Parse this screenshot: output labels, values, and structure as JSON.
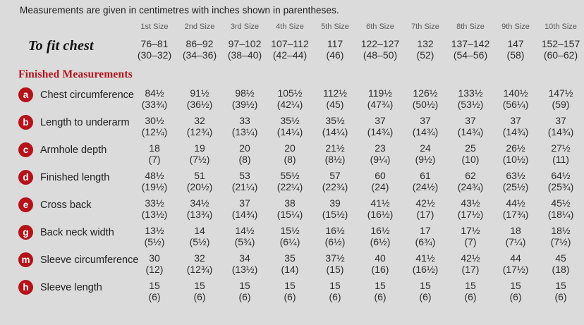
{
  "note": "Measurements are given in centimetres with inches shown in parentheses.",
  "colors": {
    "accent_red": "#b5121a",
    "background": "#dbdbdb"
  },
  "sizes": [
    "1st Size",
    "2nd Size",
    "3rd Size",
    "4th Size",
    "5th Size",
    "6th Size",
    "7th Size",
    "8th Size",
    "9th Size",
    "10th Size"
  ],
  "to_fit_chest": {
    "label": "To fit chest",
    "cm": [
      "76–81",
      "86–92",
      "97–102",
      "107–112",
      "117",
      "122–127",
      "132",
      "137–142",
      "147",
      "152–157"
    ],
    "in": [
      "(30–32)",
      "(34–36)",
      "(38–40)",
      "(42–44)",
      "(46)",
      "(48–50)",
      "(52)",
      "(54–56)",
      "(58)",
      "(60–62)"
    ]
  },
  "finished_heading": "Finished Measurements",
  "rows": [
    {
      "key": "a",
      "label": "Chest circumference",
      "cm": [
        "84½",
        "91½",
        "98½",
        "105½",
        "112½",
        "119½",
        "126½",
        "133½",
        "140½",
        "147½"
      ],
      "in": [
        "(33¾)",
        "(36½)",
        "(39½)",
        "(42¼)",
        "(45)",
        "(47¾)",
        "(50½)",
        "(53½)",
        "(56¼)",
        "(59)"
      ]
    },
    {
      "key": "b",
      "label": "Length to underarm",
      "cm": [
        "30½",
        "32",
        "33",
        "35½",
        "35½",
        "37",
        "37",
        "37",
        "37",
        "37"
      ],
      "in": [
        "(12¼)",
        "(12¾)",
        "(13¼)",
        "(14¼)",
        "(14¼)",
        "(14¾)",
        "(14¾)",
        "(14¾)",
        "(14¾)",
        "(14¾)"
      ]
    },
    {
      "key": "c",
      "label": "Armhole depth",
      "cm": [
        "18",
        "19",
        "20",
        "20",
        "21½",
        "23",
        "24",
        "25",
        "26½",
        "27½"
      ],
      "in": [
        "(7)",
        "(7½)",
        "(8)",
        "(8)",
        "(8½)",
        "(9¼)",
        "(9½)",
        "(10)",
        "(10½)",
        "(11)"
      ]
    },
    {
      "key": "d",
      "label": "Finished length",
      "cm": [
        "48½",
        "51",
        "53",
        "55½",
        "57",
        "60",
        "61",
        "62",
        "63½",
        "64½"
      ],
      "in": [
        "(19½)",
        "(20½)",
        "(21¼)",
        "(22¼)",
        "(22¾)",
        "(24)",
        "(24½)",
        "(24¾)",
        "(25½)",
        "(25¾)"
      ]
    },
    {
      "key": "e",
      "label": "Cross back",
      "cm": [
        "33½",
        "34½",
        "37",
        "38",
        "39",
        "41½",
        "42½",
        "43½",
        "44½",
        "45½"
      ],
      "in": [
        "(13½)",
        "(13¾)",
        "(14¾)",
        "(15¼)",
        "(15½)",
        "(16½)",
        "(17)",
        "(17½)",
        "(17¾)",
        "(18¼)"
      ]
    },
    {
      "key": "g",
      "label": "Back neck width",
      "cm": [
        "13½",
        "14",
        "14½",
        "15½",
        "16½",
        "16½",
        "17",
        "17½",
        "18",
        "18½"
      ],
      "in": [
        "(5½)",
        "(5½)",
        "(5¾)",
        "(6¼)",
        "(6½)",
        "(6½)",
        "(6¾)",
        "(7)",
        "(7¼)",
        "(7½)"
      ]
    },
    {
      "key": "m",
      "label": "Sleeve circumference",
      "cm": [
        "30",
        "32",
        "34",
        "35",
        "37½",
        "40",
        "41½",
        "42½",
        "44",
        "45"
      ],
      "in": [
        "(12)",
        "(12¾)",
        "(13½)",
        "(14)",
        "(15)",
        "(16)",
        "(16½)",
        "(17)",
        "(17½)",
        "(18)"
      ]
    },
    {
      "key": "h",
      "label": "Sleeve length",
      "cm": [
        "15",
        "15",
        "15",
        "15",
        "15",
        "15",
        "15",
        "15",
        "15",
        "15"
      ],
      "in": [
        "(6)",
        "(6)",
        "(6)",
        "(6)",
        "(6)",
        "(6)",
        "(6)",
        "(6)",
        "(6)",
        "(6)"
      ]
    }
  ]
}
